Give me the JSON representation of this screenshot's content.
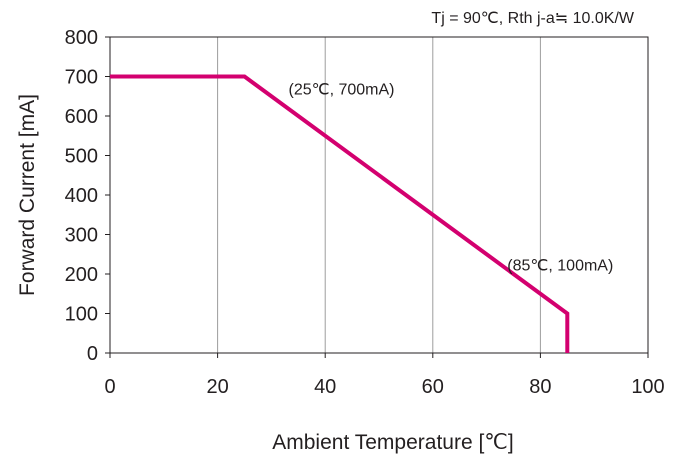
{
  "chart_data": {
    "type": "line",
    "subtitle": "Tj = 90℃, Rth j-a≒ 10.0K/W",
    "xlabel": "Ambient Temperature [℃]",
    "ylabel": "Forward Current [mA]",
    "xlim": [
      0,
      100
    ],
    "ylim": [
      0,
      800
    ],
    "x_ticks": [
      0,
      20,
      40,
      60,
      80,
      100
    ],
    "y_ticks": [
      0,
      100,
      200,
      300,
      400,
      500,
      600,
      700,
      800
    ],
    "grid": "vertical",
    "series": [
      {
        "color": "#d3006f",
        "points": [
          [
            0,
            700
          ],
          [
            25,
            700
          ],
          [
            85,
            100
          ],
          [
            85,
            0
          ]
        ]
      }
    ],
    "annotations": [
      {
        "text": "(25℃, 700mA)",
        "x": 25,
        "y": 700
      },
      {
        "text": "(85℃, 100mA)",
        "x": 85,
        "y": 100
      }
    ]
  }
}
